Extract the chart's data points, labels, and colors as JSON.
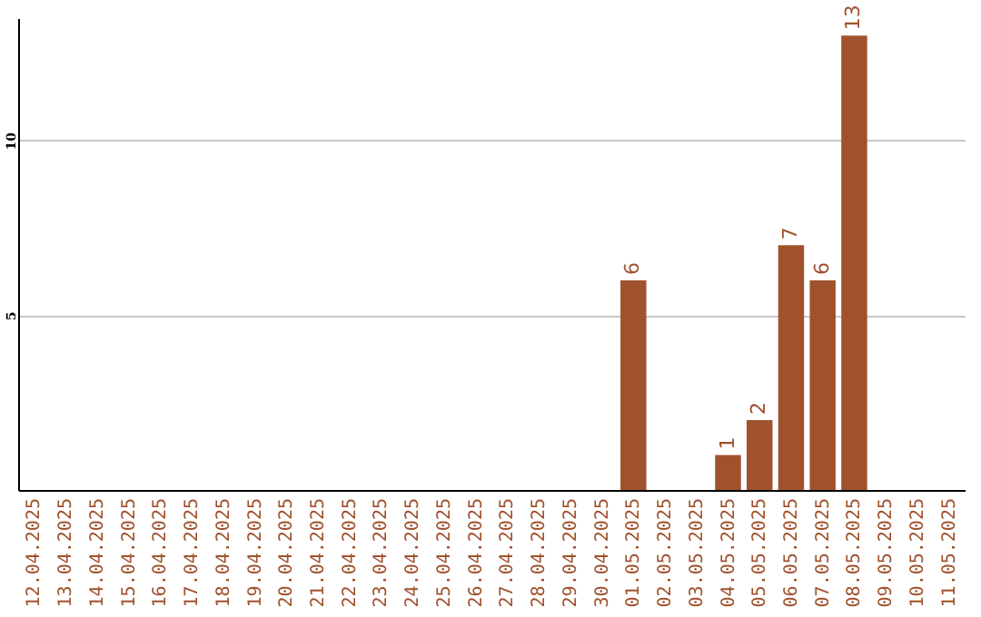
{
  "chart_data": {
    "type": "bar",
    "categories": [
      "12.04.2025",
      "13.04.2025",
      "14.04.2025",
      "15.04.2025",
      "16.04.2025",
      "17.04.2025",
      "18.04.2025",
      "19.04.2025",
      "20.04.2025",
      "21.04.2025",
      "22.04.2025",
      "23.04.2025",
      "24.04.2025",
      "25.04.2025",
      "26.04.2025",
      "27.04.2025",
      "28.04.2025",
      "29.04.2025",
      "30.04.2025",
      "01.05.2025",
      "02.05.2025",
      "03.05.2025",
      "04.05.2025",
      "05.05.2025",
      "06.05.2025",
      "07.05.2025",
      "08.05.2025",
      "09.05.2025",
      "10.05.2025",
      "11.05.2025"
    ],
    "values": [
      0,
      0,
      0,
      0,
      0,
      0,
      0,
      0,
      0,
      0,
      0,
      0,
      0,
      0,
      0,
      0,
      0,
      0,
      0,
      6,
      0,
      0,
      1,
      2,
      7,
      6,
      13,
      0,
      0,
      0
    ],
    "value_labels": [
      null,
      null,
      null,
      null,
      null,
      null,
      null,
      null,
      null,
      null,
      null,
      null,
      null,
      null,
      null,
      null,
      null,
      null,
      null,
      "6",
      null,
      null,
      "1",
      "2",
      "7",
      "6",
      "13",
      null,
      null,
      null
    ],
    "color": "#a0522d",
    "ylim": [
      0,
      13.5
    ],
    "yticks": [
      5,
      10
    ],
    "grid": "y"
  }
}
